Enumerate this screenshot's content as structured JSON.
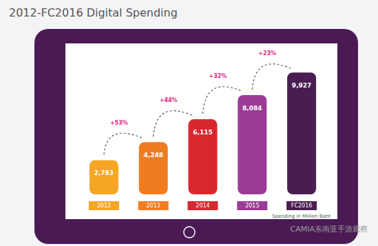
{
  "chart_data": {
    "type": "bar",
    "title": "2012-FC2016 Digital Spending",
    "subtitle": "Spending in Million Baht",
    "credit": "CAMIA东南亚手游观察",
    "categories": [
      "2012",
      "2013",
      "2014",
      "2015",
      "FC2016"
    ],
    "values": [
      2783,
      4248,
      6115,
      8084,
      9927
    ],
    "value_labels": [
      "2,783",
      "4,248",
      "6,115",
      "8,084",
      "9,927"
    ],
    "growth_labels": [
      "+53%",
      "+44%",
      "+32%",
      "+23%"
    ],
    "colors": [
      "#f5a623",
      "#f07c22",
      "#d9272e",
      "#9a3c96",
      "#4a1d52"
    ],
    "ylim": [
      0,
      10500
    ],
    "data_labels": true,
    "tick_labels": "x",
    "grid": false
  }
}
